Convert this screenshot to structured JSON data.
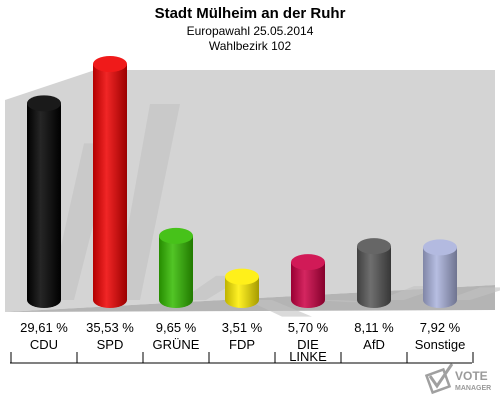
{
  "header": {
    "title": "Stadt Mülheim an der Ruhr",
    "subtitle": "Europawahl 25.05.2014",
    "district": "Wahlbezirk 102"
  },
  "watermark": {
    "line1": "VOTE",
    "line2": "MANAGER"
  },
  "colors": {
    "background_wall": "#d4d4d4",
    "floor": "#b4b4b4"
  },
  "chart_data": {
    "type": "bar",
    "categories": [
      "CDU",
      "SPD",
      "GRÜNE",
      "FDP",
      "DIE LINKE",
      "AfD",
      "Sonstige"
    ],
    "category_lines": [
      [
        "CDU"
      ],
      [
        "SPD"
      ],
      [
        "GRÜNE"
      ],
      [
        "FDP"
      ],
      [
        "DIE",
        "LINKE"
      ],
      [
        "AfD"
      ],
      [
        "Sonstige"
      ]
    ],
    "values": [
      29.61,
      35.53,
      9.65,
      3.51,
      5.7,
      8.11,
      7.92
    ],
    "value_labels": [
      "29,61 %",
      "35,53 %",
      "9,65 %",
      "3,51 %",
      "5,70 %",
      "8,11 %",
      "7,92 %"
    ],
    "colors": [
      "#000000",
      "#ee0000",
      "#33bb00",
      "#ffee00",
      "#cc0044",
      "#555555",
      "#aab2dd"
    ],
    "ylim": [
      0,
      35.53
    ]
  }
}
